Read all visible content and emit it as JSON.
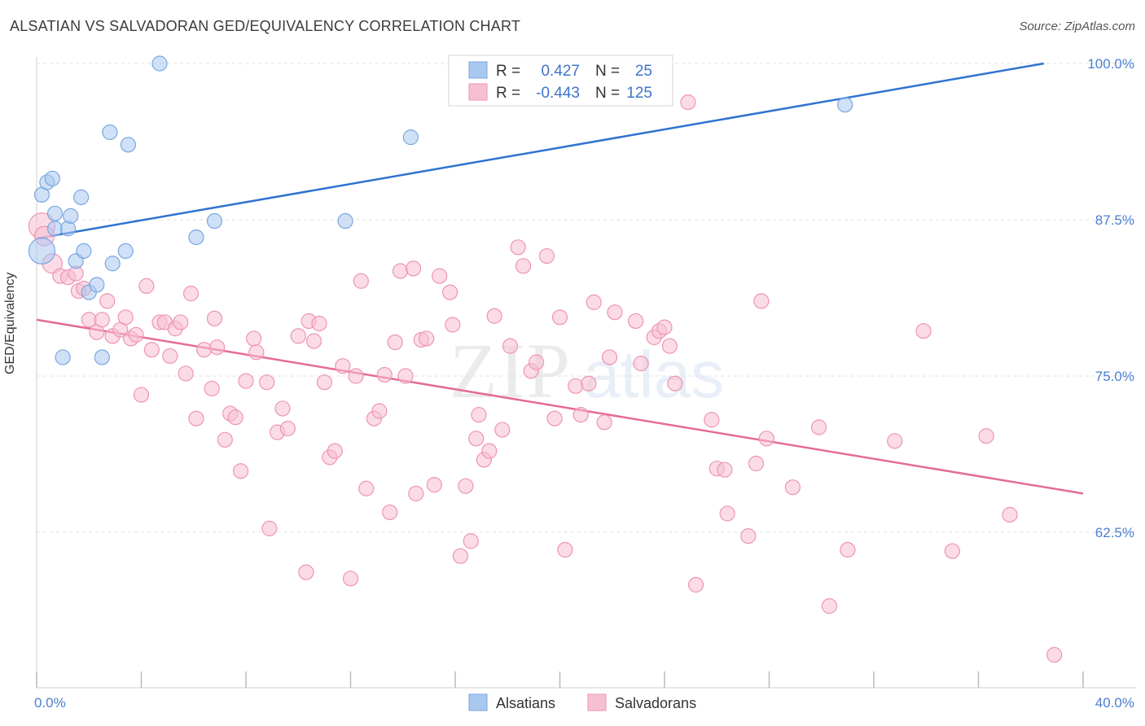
{
  "title": "ALSATIAN VS SALVADORAN GED/EQUIVALENCY CORRELATION CHART",
  "source": "Source: ZipAtlas.com",
  "chart_data": {
    "type": "scatter",
    "title": "ALSATIAN VS SALVADORAN GED/EQUIVALENCY CORRELATION CHART",
    "xlabel": "",
    "ylabel": "GED/Equivalency",
    "xlim": [
      0,
      40
    ],
    "ylim": [
      51,
      101
    ],
    "x_tick_labels": [
      "0.0%",
      "40.0%"
    ],
    "y_ticks": [
      62.5,
      75.0,
      87.5,
      100.0
    ],
    "y_tick_labels": [
      "62.5%",
      "75.0%",
      "87.5%",
      "100.0%"
    ],
    "grid": true,
    "watermark": "ZIPatlas",
    "legend": {
      "position": "top-center",
      "entries": [
        {
          "r_label": "R =",
          "r_value": "0.427",
          "n_label": "N =",
          "n_value": "25"
        },
        {
          "r_label": "R =",
          "r_value": "-0.443",
          "n_label": "N =",
          "n_value": "125"
        }
      ]
    },
    "series": [
      {
        "name": "Alsatians",
        "color": "#a9c8f0",
        "stroke": "#7aa6e0",
        "line_color": "#2f72d0",
        "trend": {
          "x0": 0,
          "y0": 86.0,
          "x1": 38.5,
          "y1": 100.0
        },
        "points": [
          [
            0.2,
            85.0
          ],
          [
            0.2,
            89.5
          ],
          [
            0.4,
            90.5
          ],
          [
            0.6,
            90.8
          ],
          [
            0.7,
            88.0
          ],
          [
            0.7,
            86.8
          ],
          [
            1.0,
            76.5
          ],
          [
            1.2,
            86.8
          ],
          [
            1.3,
            87.8
          ],
          [
            1.5,
            84.2
          ],
          [
            1.7,
            89.3
          ],
          [
            1.8,
            85.0
          ],
          [
            2.0,
            81.7
          ],
          [
            2.3,
            82.3
          ],
          [
            2.5,
            76.5
          ],
          [
            2.8,
            94.5
          ],
          [
            2.9,
            84.0
          ],
          [
            3.4,
            85.0
          ],
          [
            3.5,
            93.5
          ],
          [
            4.7,
            100.0
          ],
          [
            6.1,
            86.1
          ],
          [
            6.8,
            87.4
          ],
          [
            11.8,
            87.4
          ],
          [
            14.3,
            94.1
          ],
          [
            30.9,
            96.7
          ]
        ]
      },
      {
        "name": "Salvadorans",
        "color": "#f7c0d2",
        "stroke": "#ee94b2",
        "line_color": "#e56b97",
        "trend": {
          "x0": 0,
          "y0": 79.5,
          "x1": 40,
          "y1": 65.6
        },
        "points": [
          [
            0.2,
            87.0
          ],
          [
            0.3,
            86.2
          ],
          [
            0.6,
            84.0
          ],
          [
            0.9,
            83.0
          ],
          [
            1.2,
            82.9
          ],
          [
            1.5,
            83.2
          ],
          [
            1.6,
            81.8
          ],
          [
            1.8,
            82.0
          ],
          [
            2.0,
            79.5
          ],
          [
            2.3,
            78.5
          ],
          [
            2.5,
            79.5
          ],
          [
            2.7,
            81.0
          ],
          [
            2.9,
            78.2
          ],
          [
            3.2,
            78.7
          ],
          [
            3.4,
            79.7
          ],
          [
            3.6,
            78.0
          ],
          [
            3.8,
            78.3
          ],
          [
            4.0,
            73.5
          ],
          [
            4.2,
            82.2
          ],
          [
            4.4,
            77.1
          ],
          [
            4.7,
            79.3
          ],
          [
            4.9,
            79.3
          ],
          [
            5.1,
            76.6
          ],
          [
            5.3,
            78.8
          ],
          [
            5.5,
            79.3
          ],
          [
            5.7,
            75.2
          ],
          [
            5.9,
            81.6
          ],
          [
            6.1,
            71.6
          ],
          [
            6.4,
            77.1
          ],
          [
            6.7,
            74.0
          ],
          [
            6.8,
            79.6
          ],
          [
            6.9,
            77.3
          ],
          [
            7.2,
            69.9
          ],
          [
            7.4,
            72.0
          ],
          [
            7.6,
            71.7
          ],
          [
            7.8,
            67.4
          ],
          [
            8.0,
            74.6
          ],
          [
            8.3,
            78.0
          ],
          [
            8.4,
            76.9
          ],
          [
            8.8,
            74.5
          ],
          [
            8.9,
            62.8
          ],
          [
            9.2,
            70.5
          ],
          [
            9.4,
            72.4
          ],
          [
            9.6,
            70.8
          ],
          [
            10.0,
            78.2
          ],
          [
            10.3,
            59.3
          ],
          [
            10.4,
            79.4
          ],
          [
            10.6,
            77.8
          ],
          [
            10.8,
            79.2
          ],
          [
            11.0,
            74.5
          ],
          [
            11.2,
            68.5
          ],
          [
            11.4,
            69.0
          ],
          [
            11.7,
            75.8
          ],
          [
            12.0,
            58.8
          ],
          [
            12.2,
            75.0
          ],
          [
            12.4,
            82.6
          ],
          [
            12.6,
            66.0
          ],
          [
            12.9,
            71.6
          ],
          [
            13.1,
            72.2
          ],
          [
            13.3,
            75.1
          ],
          [
            13.5,
            64.1
          ],
          [
            13.7,
            77.7
          ],
          [
            13.9,
            83.4
          ],
          [
            14.1,
            75.0
          ],
          [
            14.4,
            83.6
          ],
          [
            14.5,
            65.6
          ],
          [
            14.7,
            77.9
          ],
          [
            14.9,
            78.0
          ],
          [
            15.2,
            66.3
          ],
          [
            15.4,
            83.0
          ],
          [
            15.8,
            81.7
          ],
          [
            15.9,
            79.1
          ],
          [
            16.2,
            60.6
          ],
          [
            16.4,
            66.2
          ],
          [
            16.6,
            61.8
          ],
          [
            16.8,
            70.0
          ],
          [
            16.9,
            71.9
          ],
          [
            17.1,
            68.3
          ],
          [
            17.3,
            69.0
          ],
          [
            17.5,
            79.8
          ],
          [
            17.8,
            70.7
          ],
          [
            18.1,
            77.4
          ],
          [
            18.4,
            85.3
          ],
          [
            18.6,
            83.8
          ],
          [
            18.9,
            75.4
          ],
          [
            19.1,
            76.1
          ],
          [
            19.5,
            84.6
          ],
          [
            19.8,
            71.6
          ],
          [
            20.0,
            79.7
          ],
          [
            20.2,
            61.1
          ],
          [
            20.6,
            74.2
          ],
          [
            20.8,
            71.9
          ],
          [
            21.1,
            74.4
          ],
          [
            21.3,
            80.9
          ],
          [
            21.7,
            71.3
          ],
          [
            21.9,
            76.5
          ],
          [
            22.1,
            80.1
          ],
          [
            22.9,
            79.4
          ],
          [
            23.1,
            76.0
          ],
          [
            23.6,
            78.1
          ],
          [
            23.8,
            78.6
          ],
          [
            24.0,
            78.9
          ],
          [
            24.2,
            77.4
          ],
          [
            24.4,
            74.4
          ],
          [
            24.9,
            96.9
          ],
          [
            25.2,
            58.3
          ],
          [
            25.8,
            71.5
          ],
          [
            26.0,
            67.6
          ],
          [
            26.3,
            67.5
          ],
          [
            26.4,
            64.0
          ],
          [
            27.2,
            62.2
          ],
          [
            27.5,
            68.0
          ],
          [
            27.7,
            81.0
          ],
          [
            27.9,
            70.0
          ],
          [
            28.9,
            66.1
          ],
          [
            29.9,
            70.9
          ],
          [
            30.3,
            56.6
          ],
          [
            31.0,
            61.1
          ],
          [
            32.8,
            69.8
          ],
          [
            33.9,
            78.6
          ],
          [
            35.0,
            61.0
          ],
          [
            36.3,
            70.2
          ],
          [
            37.2,
            63.9
          ],
          [
            38.9,
            52.7
          ]
        ]
      }
    ]
  },
  "bottom_legend": [
    {
      "label": "Alsatians"
    },
    {
      "label": "Salvadorans"
    }
  ]
}
